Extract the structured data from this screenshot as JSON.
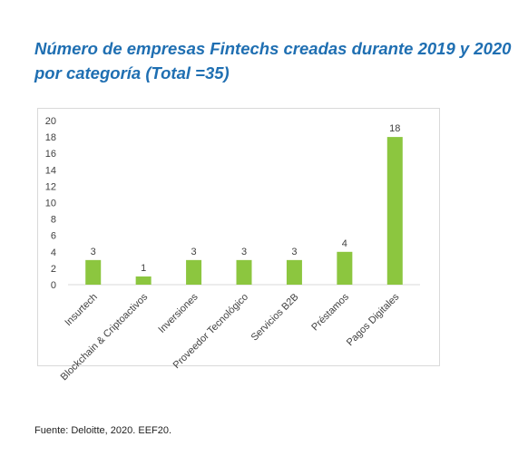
{
  "figure": {
    "title_line1": "Número de empresas Fintechs creadas durante 2019 y 2020",
    "title_line2": "por categoría (Total =35)",
    "source": "Fuente: Deloitte, 2020. EEF20."
  },
  "colors": {
    "title": "#1f6fb2",
    "bar": "#8cc63f",
    "frame": "#d9d9d9",
    "text": "#404040"
  },
  "chart_data": {
    "type": "bar",
    "categories": [
      "Insurtech",
      "Blockchain & Criptoactivos",
      "Inversiones",
      "Proveedor Tecnológico",
      "Servicios B2B",
      "Préstamos",
      "Pagos Digitales"
    ],
    "values": [
      3,
      1,
      3,
      3,
      3,
      4,
      18
    ],
    "ylim": [
      0,
      20
    ],
    "yticks": [
      0,
      2,
      4,
      6,
      8,
      10,
      12,
      14,
      16,
      18,
      20
    ],
    "data_labels": [
      "3",
      "1",
      "3",
      "3",
      "3",
      "4",
      "18"
    ],
    "grid": false,
    "legend": "none"
  }
}
